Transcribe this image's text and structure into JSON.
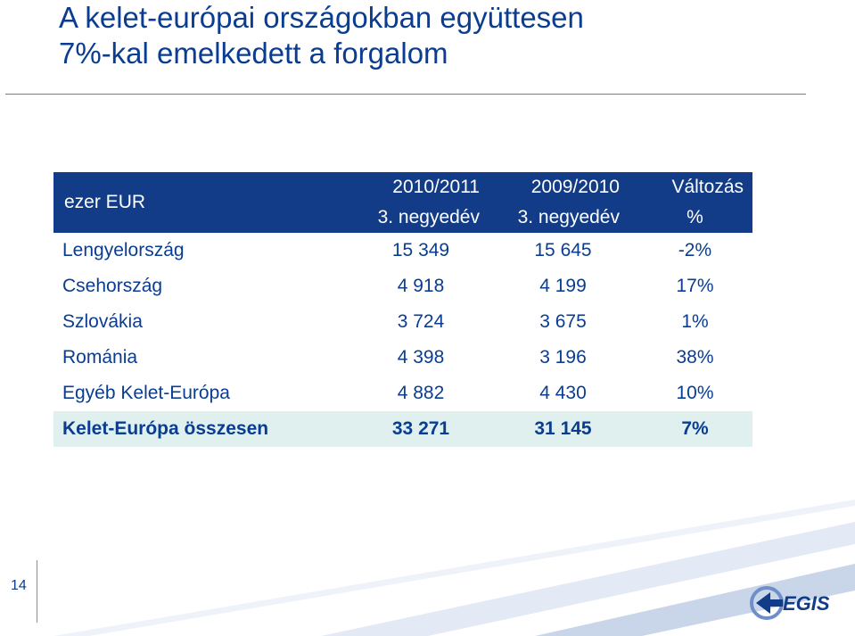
{
  "slide": {
    "title_line1": "A kelet-európai országokban együttesen",
    "title_line2": "7%-kal emelkedett a forgalom",
    "page_number": "14",
    "logo_text": "EGIS"
  },
  "table": {
    "unit_label": "ezer EUR",
    "col1_line1": "2010/2011",
    "col1_line2": "3. negyedév",
    "col2_line1": "2009/2010",
    "col2_line2": "3. negyedév",
    "col3_line1": "Változás",
    "col3_line2": "%",
    "rows": [
      {
        "country": "Lengyelország",
        "current": "15 349",
        "previous": "15 645",
        "change": "-2%"
      },
      {
        "country": "Csehország",
        "current": "4 918",
        "previous": "4 199",
        "change": "17%"
      },
      {
        "country": "Szlovákia",
        "current": "3 724",
        "previous": "3 675",
        "change": "1%"
      },
      {
        "country": "Románia",
        "current": "4 398",
        "previous": "3 196",
        "change": "38%"
      },
      {
        "country": "Egyéb Kelet-Európa",
        "current": "4 882",
        "previous": "4 430",
        "change": "10%"
      }
    ],
    "total": {
      "country": "Kelet-Európa összesen",
      "current": "33 271",
      "previous": "31 145",
      "change": "7%"
    }
  },
  "colors": {
    "title": "#0a3d91",
    "header_bg": "#123c87",
    "total_bg": "#e0f0ee",
    "stripe_light": "#c9d6ea",
    "stripe_mid": "#9fb4d8",
    "stripe_dark": "#6f8fc9"
  }
}
